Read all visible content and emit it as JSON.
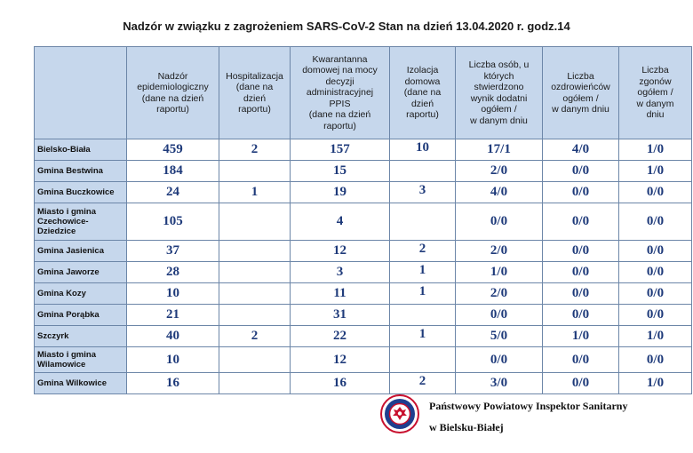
{
  "title": "Nadzór w związku z zagrożeniem SARS-CoV-2   Stan na dzień 13.04.2020 r. godz.14",
  "headers": [
    "",
    "Nadzór\nepidemiologiczny\n(dane na dzień\nraportu)",
    "Hospitalizacja\n(dane na\ndzień\nraportu)",
    "Kwarantanna\ndomowej na mocy\ndecyzji\nadministracyjnej\nPPIS\n(dane na dzień\nraportu)",
    "Izolacja\ndomowa\n(dane na\ndzień\nraportu)",
    "Liczba osób, u\nktórych\nstwierdzono\nwynik dodatni\nogółem /\nw danym dniu",
    "Liczba\nozdrowieńców\nogółem /\nw danym dniu",
    "Liczba\nzgonów\nogółem /\nw danym\ndniu"
  ],
  "rows": [
    {
      "name": "Bielsko-Biała",
      "nadzor": "459",
      "hosp": "2",
      "kwar": "157",
      "izol": "10",
      "dodatni": "17/1",
      "ozdr": "4/0",
      "zgony": "1/0"
    },
    {
      "name": "Gmina Bestwina",
      "nadzor": "184",
      "hosp": "",
      "kwar": "15",
      "izol": "",
      "dodatni": "2/0",
      "ozdr": "0/0",
      "zgony": "1/0"
    },
    {
      "name": "Gmina Buczkowice",
      "nadzor": "24",
      "hosp": "1",
      "kwar": "19",
      "izol": "3",
      "dodatni": "4/0",
      "ozdr": "0/0",
      "zgony": "0/0"
    },
    {
      "name": "Miasto i gmina Czechowice-Dziedzice",
      "nadzor": "105",
      "hosp": "",
      "kwar": "4",
      "izol": "",
      "dodatni": "0/0",
      "ozdr": "0/0",
      "zgony": "0/0"
    },
    {
      "name": "Gmina Jasienica",
      "nadzor": "37",
      "hosp": "",
      "kwar": "12",
      "izol": "2",
      "dodatni": "2/0",
      "ozdr": "0/0",
      "zgony": "0/0"
    },
    {
      "name": "Gmina Jaworze",
      "nadzor": "28",
      "hosp": "",
      "kwar": "3",
      "izol": "1",
      "dodatni": "1/0",
      "ozdr": "0/0",
      "zgony": "0/0"
    },
    {
      "name": "Gmina Kozy",
      "nadzor": "10",
      "hosp": "",
      "kwar": "11",
      "izol": "1",
      "dodatni": "2/0",
      "ozdr": "0/0",
      "zgony": "0/0"
    },
    {
      "name": "Gmina Porąbka",
      "nadzor": "21",
      "hosp": "",
      "kwar": "31",
      "izol": "",
      "dodatni": "0/0",
      "ozdr": "0/0",
      "zgony": "0/0"
    },
    {
      "name": "Szczyrk",
      "nadzor": "40",
      "hosp": "2",
      "kwar": "22",
      "izol": "1",
      "dodatni": "5/0",
      "ozdr": "1/0",
      "zgony": "1/0"
    },
    {
      "name": "Miasto i gmina Wilamowice",
      "nadzor": "10",
      "hosp": "",
      "kwar": "12",
      "izol": "",
      "dodatni": "0/0",
      "ozdr": "0/0",
      "zgony": "0/0"
    },
    {
      "name": "Gmina Wilkowice",
      "nadzor": "16",
      "hosp": "",
      "kwar": "16",
      "izol": "2",
      "dodatni": "3/0",
      "ozdr": "0/0",
      "zgony": "1/0"
    }
  ],
  "footer": {
    "line1": "Państwowy Powiatowy Inspektor Sanitarny",
    "line2": "w Bielsku-Białej",
    "seal_icon": "sanepid-seal-icon",
    "seal_colors": {
      "ring": "#c8102e",
      "inner": "#1f3f8f"
    }
  }
}
